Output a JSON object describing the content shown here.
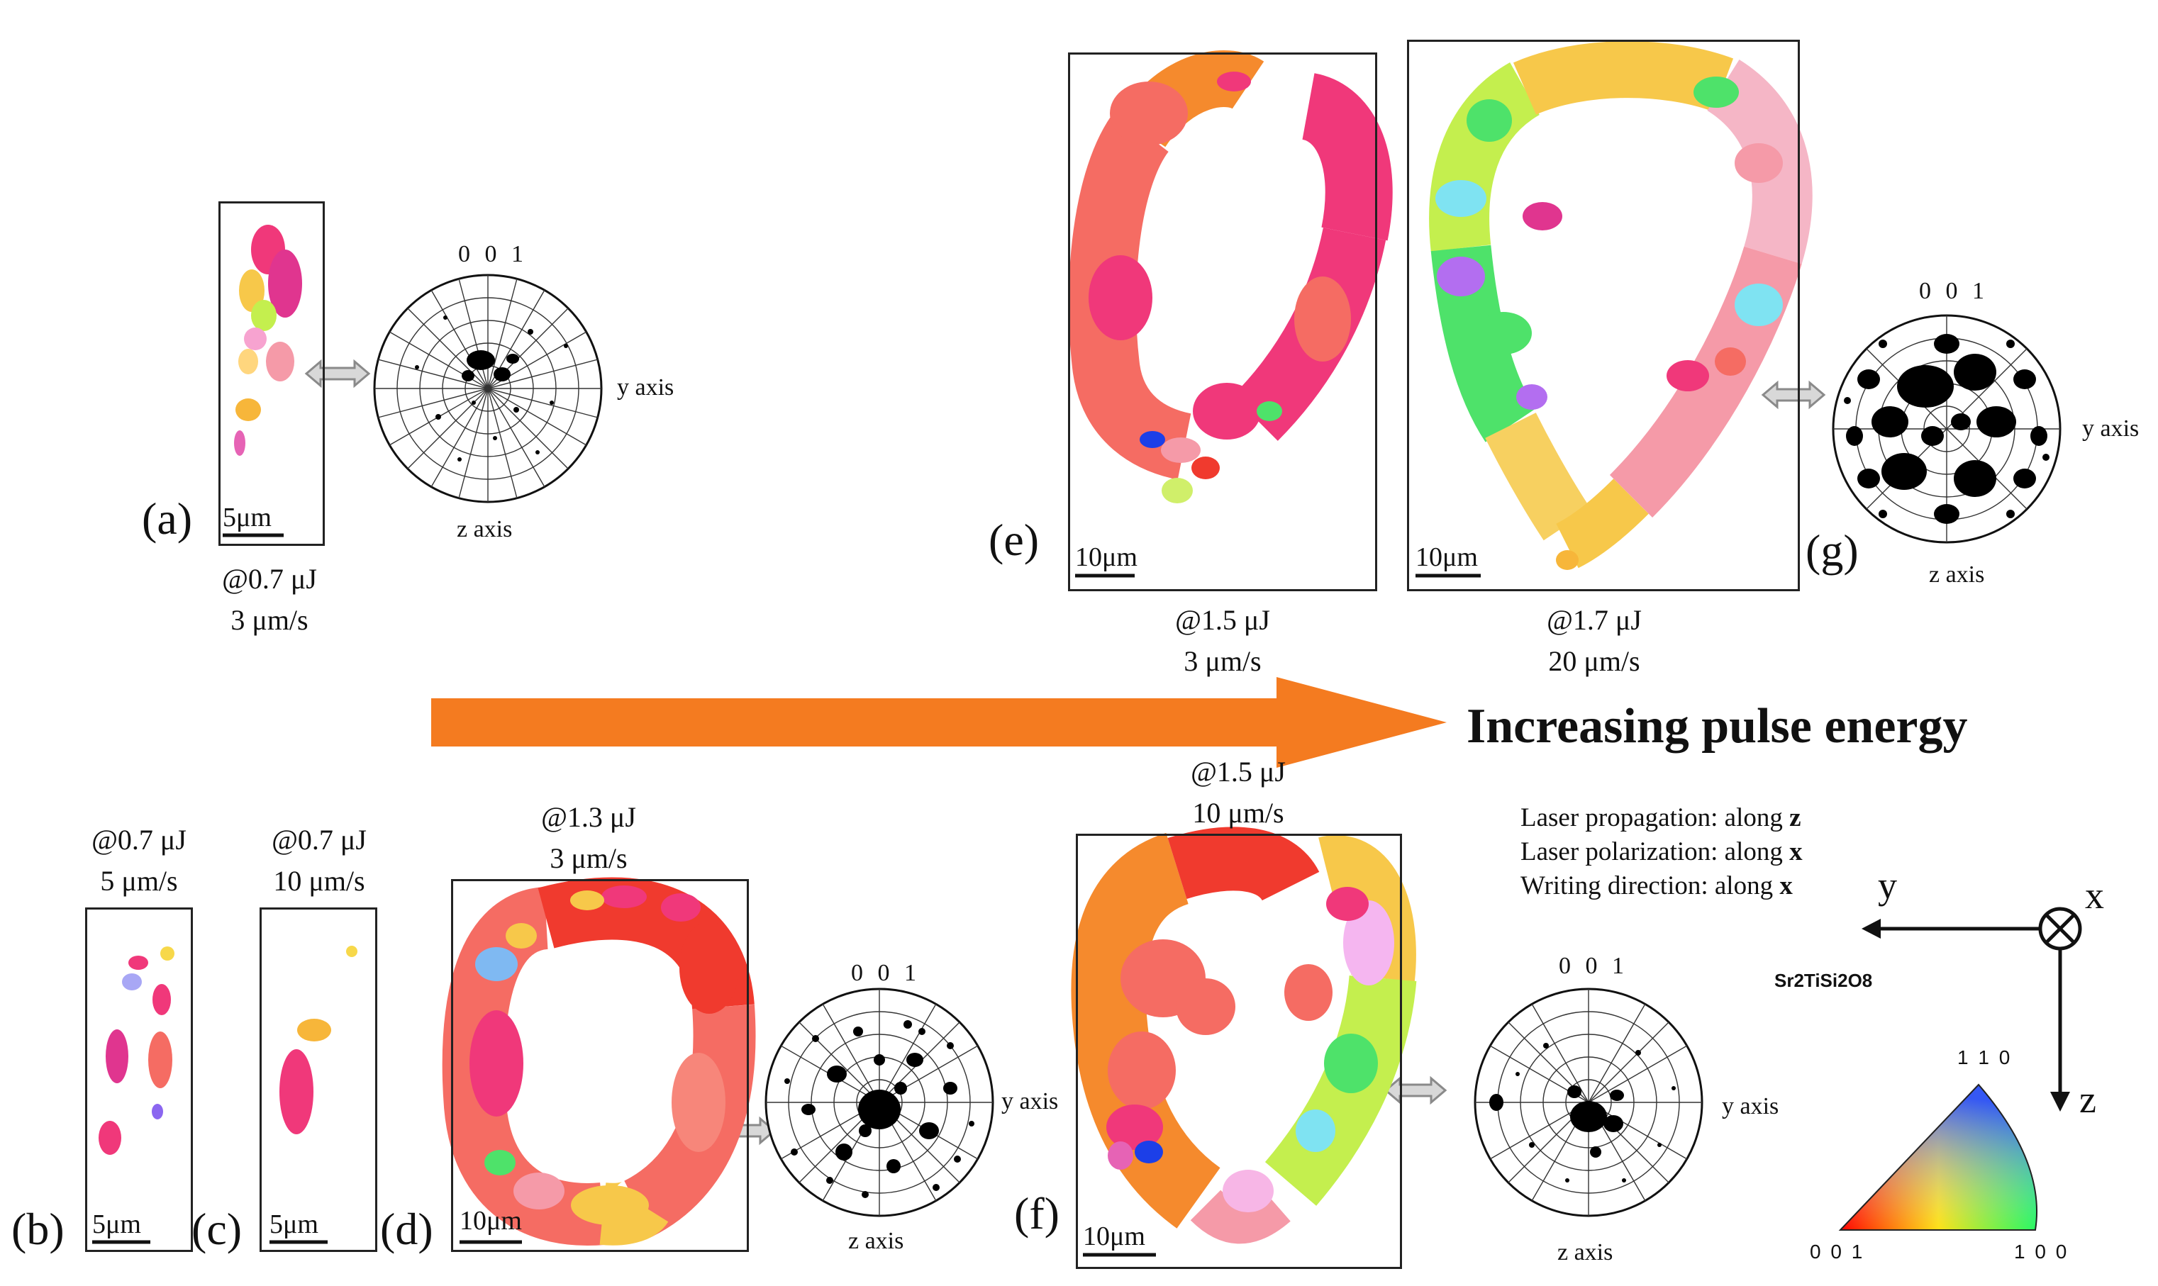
{
  "panels": [
    {
      "id": "a",
      "label": "(a)",
      "scale": "5μm",
      "energy": "@0.7 μJ",
      "speed": "3 μm/s"
    },
    {
      "id": "b",
      "label": "(b)",
      "scale": "5μm",
      "energy": "@0.7 μJ",
      "speed": "5 μm/s"
    },
    {
      "id": "c",
      "label": "(c)",
      "scale": "5μm",
      "energy": "@0.7 μJ",
      "speed": "10 μm/s"
    },
    {
      "id": "d",
      "label": "(d)",
      "scale": "10μm",
      "energy": "@1.3 μJ",
      "speed": "3 μm/s"
    },
    {
      "id": "e",
      "label": "(e)",
      "scale": "10μm",
      "energy": "@1.5 μJ",
      "speed": "3 μm/s"
    },
    {
      "id": "f",
      "label": "(f)",
      "scale": "10μm",
      "energy": "@1.5 μJ",
      "speed": "10 μm/s"
    },
    {
      "id": "g",
      "label": "(g)",
      "scale": "10μm",
      "energy": "@1.7 μJ",
      "speed": "20 μm/s"
    }
  ],
  "pole_figures": {
    "title": "0 0 1",
    "right_axis": "y axis",
    "bottom_axis": "z axis"
  },
  "headline": "Increasing pulse energy",
  "info": {
    "line1_text": "Laser propagation: along ",
    "line1_axis": "z",
    "line2_text": "Laser polarization: along ",
    "line2_axis": "x",
    "line3_text": "Writing direction:   along ",
    "line3_axis": "x"
  },
  "coordinate_frame": {
    "y": "y",
    "x": "x",
    "z": "z"
  },
  "ipf": {
    "material": "Sr2TiSi2O8",
    "corner_top": "1 1 0",
    "corner_left": "0 0 1",
    "corner_right": "1 0 0"
  },
  "colors": {
    "arrow": "#f47b20",
    "pink": "#f0387a",
    "magenta": "#e0358f",
    "red": "#f03a2e",
    "salmon": "#f56c63",
    "orange": "#f58a2d",
    "green": "#4ee26a",
    "lime": "#c4ef4e",
    "yellow": "#f7c84a",
    "cyan": "#7fe3f2",
    "blue": "#1c3fe8",
    "violet": "#b36ef0"
  }
}
